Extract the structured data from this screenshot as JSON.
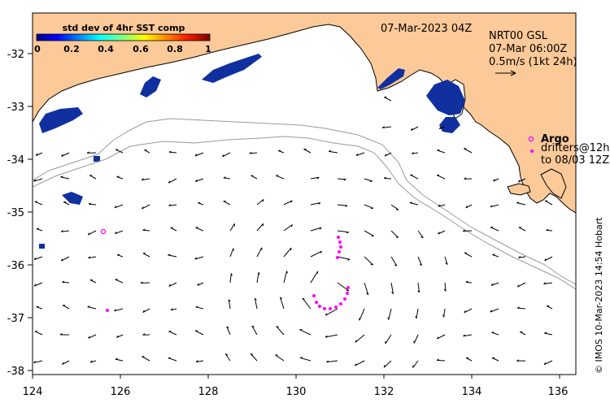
{
  "map": {
    "date_label": "07-Mar-2023 04Z",
    "model_label": "NRT00 GSL",
    "model_time": "07-Mar 06:00Z",
    "scale_label": "0.5m/s (1kt 24h)",
    "argo_label": "Argo",
    "drifters_label": "drifters@12h",
    "drifters_to_label": "to 08/03 12Z",
    "credit": "© IMOS 10-Mar-2023 14:54 Hobart",
    "colorbar": {
      "title": "std dev of 4hr SST comp",
      "ticks": [
        "0",
        "0.2",
        "0.4",
        "0.6",
        "0.8",
        "1"
      ]
    },
    "axes": {
      "x_ticks": [
        "124",
        "126",
        "128",
        "130",
        "132",
        "134",
        "136"
      ],
      "y_ticks": [
        "-32",
        "-33",
        "-34",
        "-35",
        "-36",
        "-37",
        "-38"
      ]
    },
    "colors": {
      "land": "#fcc999",
      "sst_patch": "#1030a0",
      "drifter": "#ff00ff",
      "contour": "#9a9a9a"
    }
  }
}
